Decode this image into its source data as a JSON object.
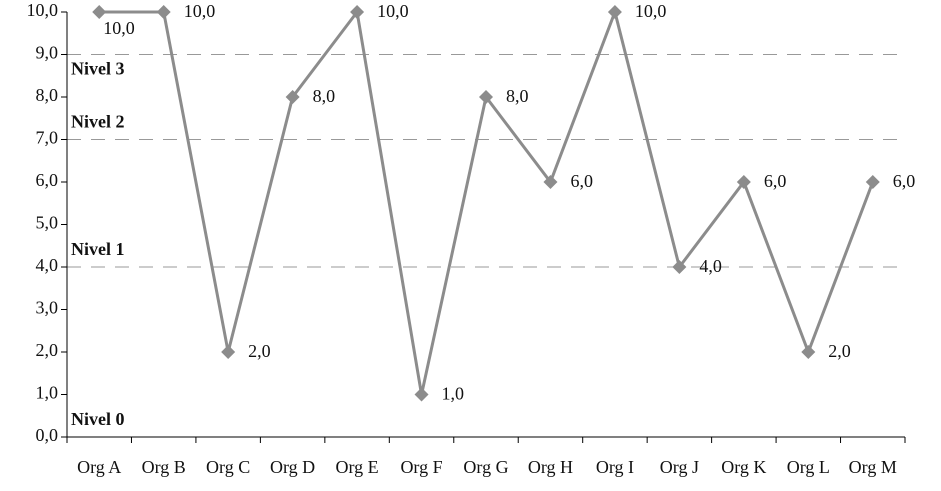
{
  "chart_data": {
    "type": "line",
    "categories": [
      "Org A",
      "Org B",
      "Org C",
      "Org D",
      "Org E",
      "Org F",
      "Org G",
      "Org H",
      "Org I",
      "Org J",
      "Org K",
      "Org L",
      "Org M"
    ],
    "values": [
      10,
      10,
      2,
      8,
      10,
      1,
      8,
      6,
      10,
      4,
      6,
      2,
      6
    ],
    "value_labels": [
      "10,0",
      "10,0",
      "2,0",
      "8,0",
      "10,0",
      "1,0",
      "8,0",
      "6,0",
      "10,0",
      "4,0",
      "6,0",
      "2,0",
      "6,0"
    ],
    "color": "#8c8c8c",
    "ylim": [
      0,
      10
    ],
    "yticks": [
      {
        "value": 0,
        "label": "0,0"
      },
      {
        "value": 1,
        "label": "1,0"
      },
      {
        "value": 2,
        "label": "2,0"
      },
      {
        "value": 3,
        "label": "3,0"
      },
      {
        "value": 4,
        "label": "4,0"
      },
      {
        "value": 5,
        "label": "5,0"
      },
      {
        "value": 6,
        "label": "6,0"
      },
      {
        "value": 7,
        "label": "7,0"
      },
      {
        "value": 8,
        "label": "8,0"
      },
      {
        "value": 9,
        "label": "9,0"
      },
      {
        "value": 10,
        "label": "10,0"
      }
    ],
    "levels": [
      {
        "value": 0,
        "label": "Nivel 0"
      },
      {
        "value": 4,
        "label": "Nivel 1"
      },
      {
        "value": 7,
        "label": "Nivel 2"
      },
      {
        "value": 9,
        "label": "Nivel 3"
      }
    ]
  }
}
